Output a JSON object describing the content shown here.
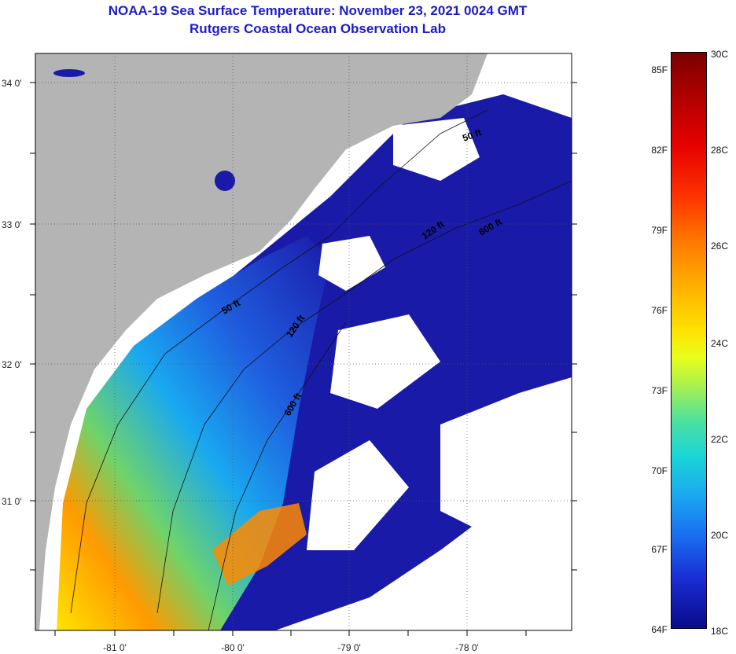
{
  "title": "NOAA-19 Sea Surface Temperature:  November 23, 2021 0024 GMT",
  "subtitle": "Rutgers Coastal Ocean Observation Lab",
  "map": {
    "lat_labels": [
      "34 0'",
      "33 0'",
      "32 0'",
      "31 0'"
    ],
    "lon_labels": [
      "-81 0'",
      "-80 0'",
      "-79 0'",
      "-78 0'"
    ],
    "contour_labels": [
      "50 ft",
      "120 ft",
      "600 ft",
      "120 ft",
      "50 ft",
      "600 ft"
    ],
    "colors": {
      "land": "#b4b4b4",
      "cloud": "#ffffff",
      "cold_water": "#1a1aa8"
    }
  },
  "colorbar": {
    "fahrenheit": [
      "85F",
      "82F",
      "79F",
      "76F",
      "73F",
      "70F",
      "67F",
      "64F"
    ],
    "celsius": [
      "30C",
      "28C",
      "26C",
      "24C",
      "22C",
      "20C",
      "18C"
    ]
  }
}
